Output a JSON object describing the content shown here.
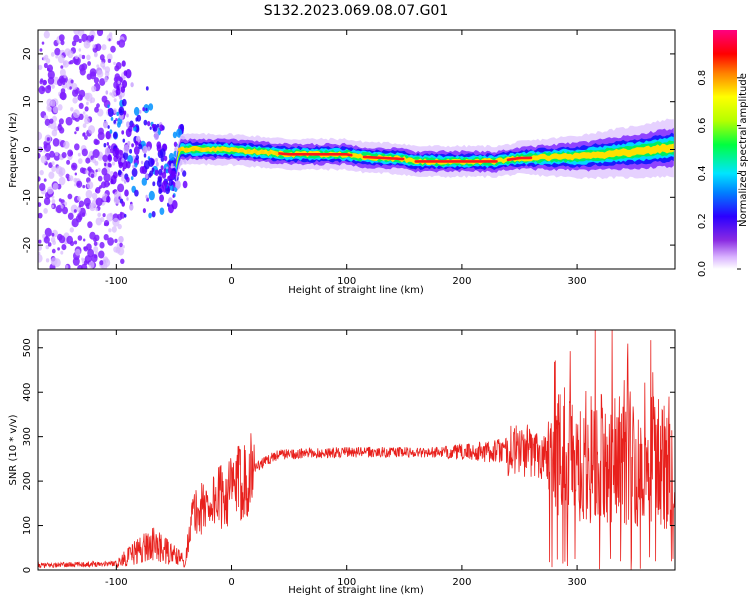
{
  "title": "S132.2023.069.08.07.G01",
  "colors": {
    "snr_line": "#e8201c",
    "axis": "#000000",
    "background": "#ffffff"
  },
  "chart_data": [
    {
      "type": "heatmap",
      "xlabel": "Height of straight line (km)",
      "ylabel": "Frequency (Hz)",
      "xlim": [
        -168,
        385
      ],
      "ylim": [
        -25,
        25
      ],
      "x_ticks": [
        -100,
        0,
        100,
        200,
        300
      ],
      "y_ticks": [
        -20,
        -10,
        0,
        10,
        20
      ],
      "colorbar": {
        "label": "Normalized spectral amplitude",
        "range": [
          0,
          1
        ],
        "ticks": [
          0.0,
          0.2,
          0.4,
          0.6,
          0.8
        ],
        "colormap": "rainbow (purple-blue-cyan-green-yellow-orange-red-magenta)"
      },
      "ridge_frequency": [
        {
          "x": -110,
          "y": 0.5
        },
        {
          "x": -80,
          "y": 0.0
        },
        {
          "x": -60,
          "y": -3.0
        },
        {
          "x": -50,
          "y": -6.0
        },
        {
          "x": -45,
          "y": 0.0
        },
        {
          "x": -20,
          "y": 0.0
        },
        {
          "x": 0,
          "y": 0.0
        },
        {
          "x": 50,
          "y": -1.0
        },
        {
          "x": 100,
          "y": -1.0
        },
        {
          "x": 110,
          "y": -1.5
        },
        {
          "x": 150,
          "y": -2.0
        },
        {
          "x": 160,
          "y": -2.5
        },
        {
          "x": 230,
          "y": -2.5
        },
        {
          "x": 250,
          "y": -1.8
        },
        {
          "x": 300,
          "y": -1.5
        },
        {
          "x": 350,
          "y": -0.5
        },
        {
          "x": 385,
          "y": 0.5
        }
      ]
    },
    {
      "type": "line",
      "xlabel": "Height of straight line (km)",
      "ylabel": "SNR (10 * v/v)",
      "xlim": [
        -168,
        385
      ],
      "ylim": [
        0,
        540
      ],
      "x_ticks": [
        -100,
        0,
        100,
        200,
        300
      ],
      "y_ticks": [
        0,
        100,
        200,
        300,
        400,
        500
      ],
      "series": [
        {
          "values_envelope": [
            {
              "x": -168,
              "y": 10
            },
            {
              "x": -100,
              "y": 15
            },
            {
              "x": -90,
              "y": 30
            },
            {
              "x": -70,
              "y": 60
            },
            {
              "x": -55,
              "y": 40
            },
            {
              "x": -40,
              "y": 20
            },
            {
              "x": -35,
              "y": 120
            },
            {
              "x": -20,
              "y": 150
            },
            {
              "x": 0,
              "y": 180
            },
            {
              "x": 20,
              "y": 230
            },
            {
              "x": 40,
              "y": 260
            },
            {
              "x": 100,
              "y": 265
            },
            {
              "x": 200,
              "y": 265
            },
            {
              "x": 250,
              "y": 270
            },
            {
              "x": 280,
              "y": 260
            },
            {
              "x": 320,
              "y": 250
            },
            {
              "x": 385,
              "y": 240
            }
          ]
        }
      ]
    }
  ]
}
